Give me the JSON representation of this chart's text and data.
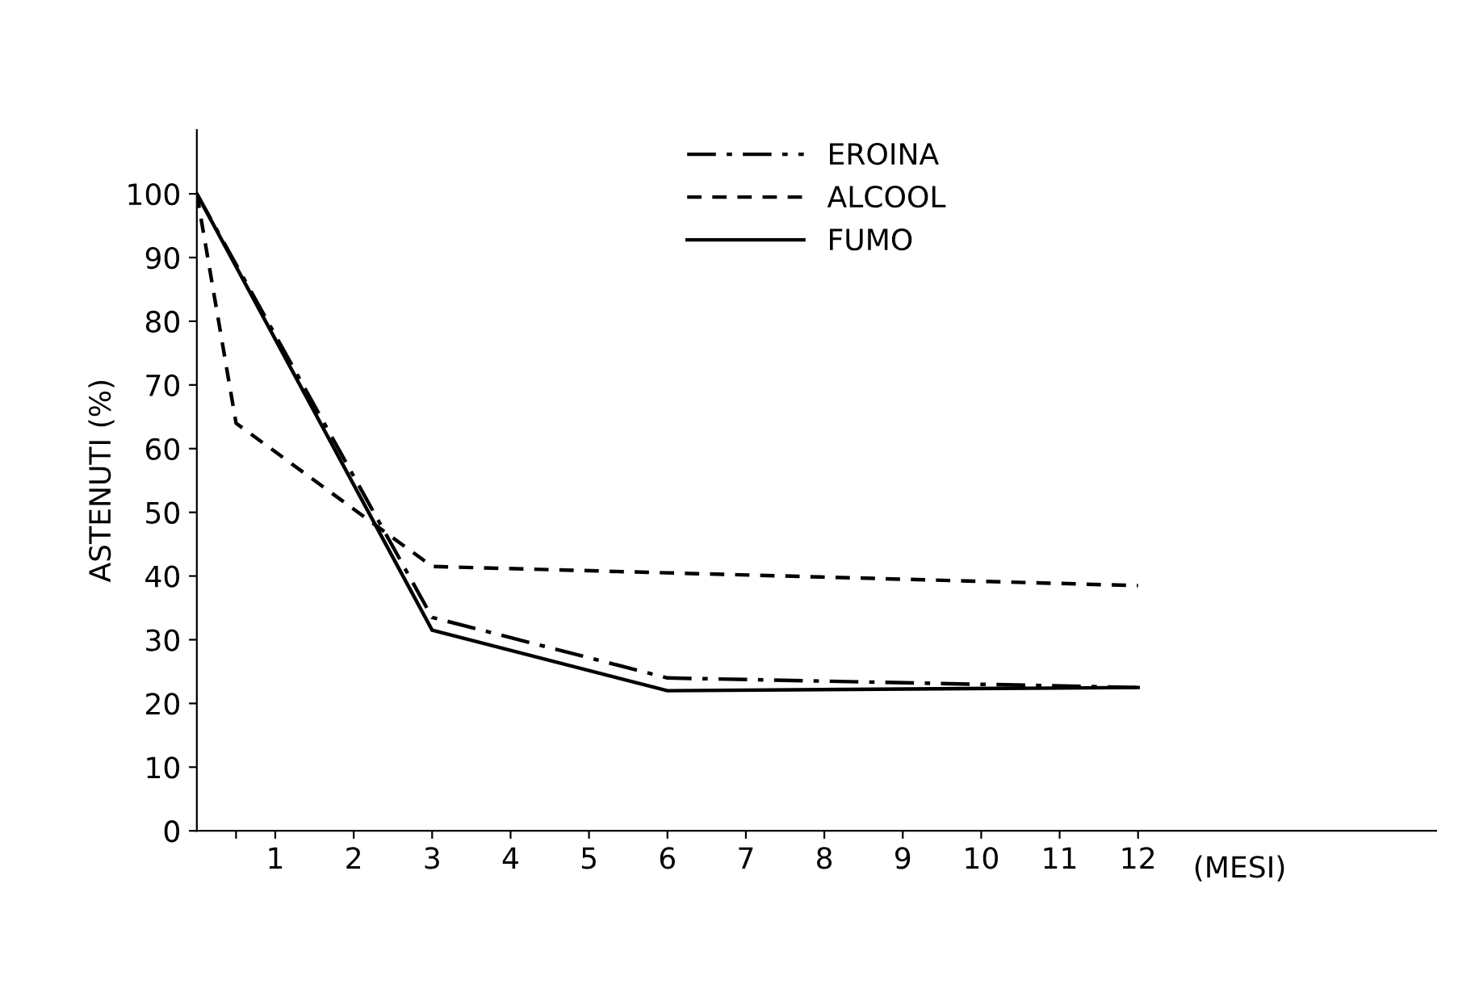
{
  "chart_data": {
    "type": "line",
    "ylabel": "ASTENUTI (%)",
    "xlabel": "(MESI)",
    "xlim": [
      0,
      15.8
    ],
    "ylim": [
      0,
      110
    ],
    "xticks": [
      {
        "value": 0.5,
        "label": null
      },
      1,
      2,
      3,
      4,
      5,
      6,
      7,
      8,
      9,
      10,
      11,
      12
    ],
    "yticks": [
      0,
      10,
      20,
      30,
      40,
      50,
      60,
      70,
      80,
      90,
      100
    ],
    "grid": false,
    "legend": "top",
    "marker": "none",
    "series": [
      {
        "name": "EROINA",
        "color": "#000000",
        "line_style": "dashdot",
        "x": [
          0,
          3,
          6,
          12
        ],
        "values": [
          100,
          33.5,
          24,
          22.5
        ]
      },
      {
        "name": "ALCOOL",
        "color": "#000000",
        "line_style": "dashed",
        "x": [
          0,
          0.5,
          3,
          6,
          12
        ],
        "values": [
          100,
          64,
          41.5,
          40.5,
          38.5
        ]
      },
      {
        "name": "FUMO",
        "color": "#000000",
        "line_style": "solid",
        "x": [
          0,
          3,
          6,
          12
        ],
        "values": [
          100,
          31.5,
          22,
          22.5
        ]
      }
    ]
  }
}
